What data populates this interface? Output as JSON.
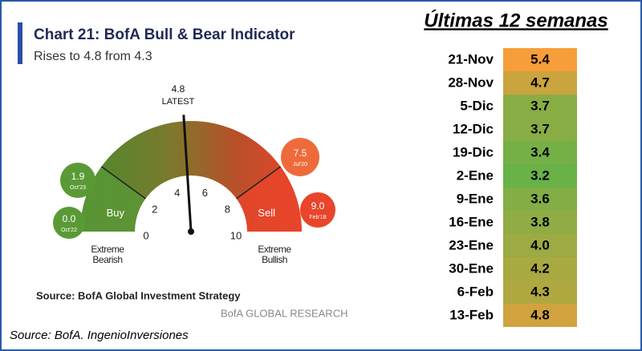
{
  "chart_data": {
    "type": "gauge",
    "title": "Chart 21: BofA Bull & Bear Indicator",
    "subtitle": "Rises to 4.8 from 4.3",
    "value": 4.8,
    "value_caption": "LATEST",
    "xlim": [
      0,
      10
    ],
    "xticks": [
      0,
      2,
      4,
      6,
      8,
      10
    ],
    "zones": [
      {
        "label": "Buy",
        "range": [
          0,
          2
        ],
        "end_label": "Extreme Bearish"
      },
      {
        "label": "Sell",
        "range": [
          8,
          10
        ],
        "end_label": "Extreme Bullish"
      }
    ],
    "history": {
      "values": [
        1.9,
        0,
        7.5,
        9
      ],
      "value_labels": [
        "1.9",
        "0.0",
        "7.5",
        "9.0"
      ],
      "dates": [
        "Oct'23",
        "Oct'22",
        "Jul'20",
        "Feb'18"
      ]
    },
    "source": "Source: BofA Global Investment Strategy",
    "brand": "BofA GLOBAL RESEARCH"
  },
  "table": {
    "title": "Últimas 12 semanas",
    "rows": [
      [
        "21-Nov",
        "5.4"
      ],
      [
        "28-Nov",
        "4.7"
      ],
      [
        "5-Dic",
        "3.7"
      ],
      [
        "12-Dic",
        "3.7"
      ],
      [
        "19-Dic",
        "3.4"
      ],
      [
        "2-Ene",
        "3.2"
      ],
      [
        "9-Ene",
        "3.6"
      ],
      [
        "16-Ene",
        "3.8"
      ],
      [
        "23-Ene",
        "4.0"
      ],
      [
        "30-Ene",
        "4.2"
      ],
      [
        "6-Feb",
        "4.3"
      ],
      [
        "13-Feb",
        "4.8"
      ]
    ]
  },
  "footer": "Source: BofA. IngenioInversiones"
}
